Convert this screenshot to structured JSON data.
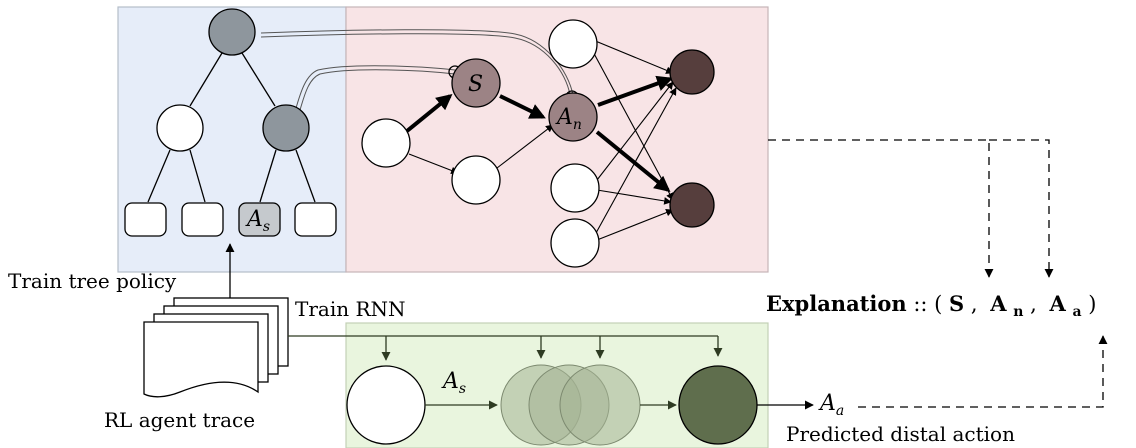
{
  "labels": {
    "train_tree_policy": "Train tree policy",
    "train_rnn": "Train RNN",
    "rl_agent_trace": "RL agent trace",
    "predicted_distal_action": "Predicted distal action"
  },
  "explanation": {
    "word": "Explanation",
    "separator": " :: ",
    "open": "(",
    "close": ")",
    "comma": ",",
    "s": "S",
    "an_main": "A",
    "an_sub": "n",
    "aa_main": "A",
    "aa_sub": "a"
  },
  "math": {
    "tree_leaf_main": "A",
    "tree_leaf_sub": "s",
    "net_s": "S",
    "net_an_main": "A",
    "net_an_sub": "n",
    "rnn_as_main": "A",
    "rnn_as_sub": "s",
    "output_aa_main": "A",
    "output_aa_sub": "a"
  },
  "colors": {
    "tree_panel": "#e6edf9",
    "network_panel": "#f8e4e6",
    "rnn_panel": "#e9f5de",
    "tree_node": "#8e969d",
    "network_highlight_node": "#9c8385",
    "network_output_node": "#563e3d",
    "rnn_output_node": "#5f6e4d",
    "rnn_arrow": "#2e3b22"
  }
}
